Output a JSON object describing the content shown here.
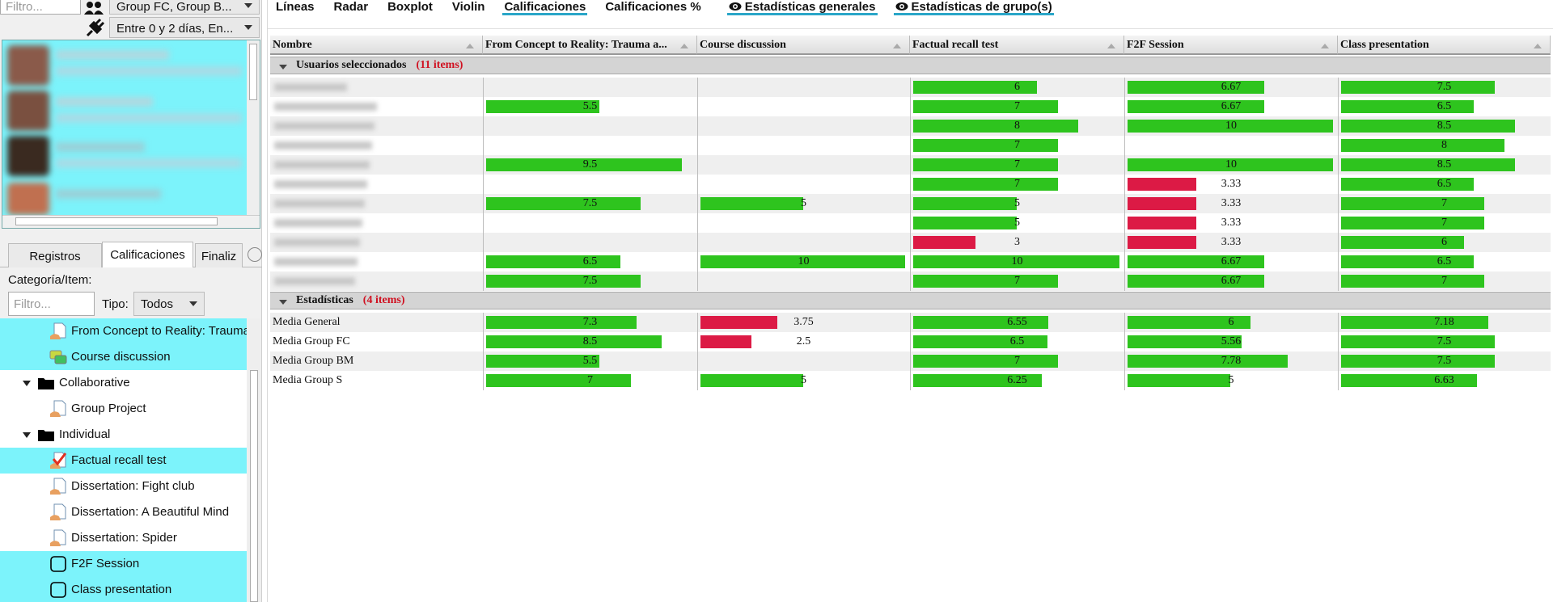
{
  "left_panel": {
    "filter_placeholder": "Filtro...",
    "group_select": "Group FC, Group B...",
    "time_select": "Entre 0 y 2 días, En...",
    "tabs": [
      {
        "label": "Registros",
        "active": false
      },
      {
        "label": "Calificaciones",
        "active": true
      },
      {
        "label": "Finaliz",
        "active": false
      }
    ],
    "category_label": "Categoría/Item:",
    "item_filter_placeholder": "Filtro...",
    "type_label": "Tipo:",
    "type_select": "Todos",
    "tree": [
      {
        "label": "From Concept to Reality: Trauma",
        "kind": "quiz",
        "level": 2,
        "selected": true
      },
      {
        "label": "Course discussion",
        "kind": "forum",
        "level": 2,
        "selected": true
      },
      {
        "label": "Collaborative",
        "kind": "folder",
        "level": 1,
        "selected": false
      },
      {
        "label": "Group Project",
        "kind": "quiz",
        "level": 2,
        "selected": false
      },
      {
        "label": "Individual",
        "kind": "folder",
        "level": 1,
        "selected": false
      },
      {
        "label": "Factual recall test",
        "kind": "check",
        "level": 2,
        "selected": true
      },
      {
        "label": "Dissertation: Fight club",
        "kind": "quiz",
        "level": 2,
        "selected": false
      },
      {
        "label": "Dissertation: A Beautiful Mind",
        "kind": "quiz",
        "level": 2,
        "selected": false
      },
      {
        "label": "Dissertation: Spider",
        "kind": "quiz",
        "level": 2,
        "selected": false
      },
      {
        "label": "F2F Session",
        "kind": "grade",
        "level": 2,
        "selected": true
      },
      {
        "label": "Class presentation",
        "kind": "grade",
        "level": 2,
        "selected": true
      }
    ]
  },
  "view_tabs": [
    {
      "label": "Líneas",
      "active": false,
      "icon": false
    },
    {
      "label": "Radar",
      "active": false,
      "icon": false
    },
    {
      "label": "Boxplot",
      "active": false,
      "icon": false
    },
    {
      "label": "Violin",
      "active": false,
      "icon": false
    },
    {
      "label": "Calificaciones",
      "active": true,
      "icon": false
    },
    {
      "label": "Calificaciones %",
      "active": false,
      "icon": false
    },
    {
      "label": "Estadísticas generales",
      "active": true,
      "icon": true
    },
    {
      "label": "Estadísticas de grupo(s)",
      "active": true,
      "icon": true
    }
  ],
  "table": {
    "columns": [
      "Nombre",
      "From Concept to Reality: Trauma a...",
      "Course discussion",
      "Factual recall test",
      "F2F Session",
      "Class presentation"
    ],
    "scale_max": 10,
    "pass_mark": 5,
    "colors": {
      "pass": "#2ec41e",
      "fail": "#dc1a45"
    },
    "groups": [
      {
        "title": "Usuarios seleccionados",
        "count": "(11 items)",
        "rows": [
          {
            "name": null,
            "values": [
              null,
              null,
              6,
              6.67,
              7.5
            ]
          },
          {
            "name": null,
            "values": [
              5.5,
              null,
              7,
              6.67,
              6.5
            ]
          },
          {
            "name": null,
            "values": [
              null,
              null,
              8,
              10,
              8.5
            ]
          },
          {
            "name": null,
            "values": [
              null,
              null,
              7,
              null,
              8
            ]
          },
          {
            "name": null,
            "values": [
              9.5,
              null,
              7,
              10,
              8.5
            ]
          },
          {
            "name": null,
            "values": [
              null,
              null,
              7,
              3.33,
              6.5
            ]
          },
          {
            "name": null,
            "values": [
              7.5,
              5,
              5,
              3.33,
              7
            ]
          },
          {
            "name": null,
            "values": [
              null,
              null,
              5,
              3.33,
              7
            ]
          },
          {
            "name": null,
            "values": [
              null,
              null,
              3,
              3.33,
              6
            ]
          },
          {
            "name": null,
            "values": [
              6.5,
              10,
              10,
              6.67,
              6.5
            ]
          },
          {
            "name": null,
            "values": [
              7.5,
              null,
              7,
              6.67,
              7
            ]
          }
        ]
      },
      {
        "title": "Estadísticas",
        "count": "(4 items)",
        "rows": [
          {
            "name": "Media General",
            "values": [
              7.3,
              3.75,
              6.55,
              6,
              7.18
            ]
          },
          {
            "name": "Media Group FC",
            "values": [
              8.5,
              2.5,
              6.5,
              5.56,
              7.5
            ]
          },
          {
            "name": "Media Group BM",
            "values": [
              5.5,
              null,
              7,
              7.78,
              7.5
            ]
          },
          {
            "name": "Media Group S",
            "values": [
              7,
              5,
              6.25,
              5,
              6.63
            ]
          }
        ]
      }
    ]
  }
}
